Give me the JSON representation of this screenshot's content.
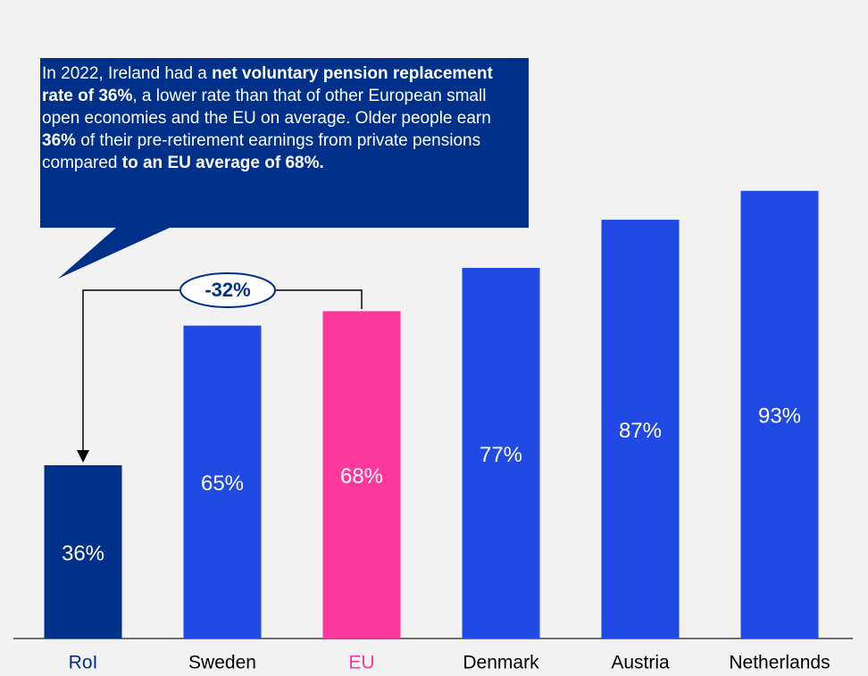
{
  "chart_data": {
    "type": "bar",
    "categories": [
      "RoI",
      "Sweden",
      "EU",
      "Denmark",
      "Austria",
      "Netherlands"
    ],
    "values": [
      36,
      65,
      68,
      77,
      87,
      93
    ],
    "value_labels": [
      "36%",
      "65%",
      "68%",
      "77%",
      "87%",
      "93%"
    ],
    "colors": [
      "#00318a",
      "#2149e3",
      "#fc389c",
      "#2149e3",
      "#2149e3",
      "#2149e3"
    ],
    "label_colors": [
      "#00318a",
      "#000000",
      "#fc389c",
      "#000000",
      "#000000",
      "#000000"
    ],
    "difference_label": "-32%",
    "annotation": [
      {
        "text": "In 2022, Ireland had a ",
        "bold": false
      },
      {
        "text": "net voluntary pension replacement rate of 36%",
        "bold": true
      },
      {
        "text": ", a lower rate than that of other European small open economies and the EU on average. Older people earn ",
        "bold": false
      },
      {
        "text": "36%",
        "bold": true
      },
      {
        "text": " of their pre-retirement earnings from private pensions compared ",
        "bold": false
      },
      {
        "text": "to an EU average of 68%.",
        "bold": true
      }
    ]
  }
}
